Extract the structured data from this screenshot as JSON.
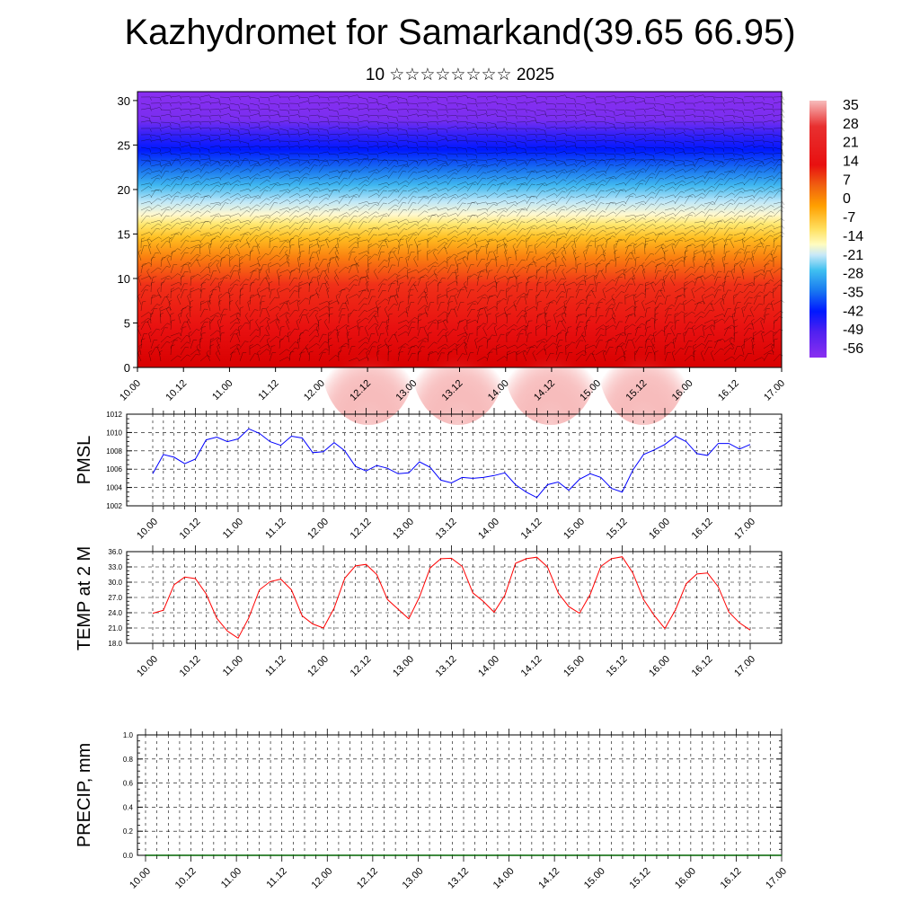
{
  "header": {
    "title": "Kazhydromet for Samarkand(39.65 66.95)",
    "subtitle": "10 ☆☆☆☆☆☆☆☆ 2025"
  },
  "colors": {
    "pmsl_line": "#0000ff",
    "temp_line": "#ff0000",
    "precip_line": "#006400",
    "grid": "#000000"
  },
  "chart_data": [
    {
      "type": "heatmap",
      "title": "",
      "xlabel": "",
      "ylabel": "",
      "x_tick_labels": [
        "10.00",
        "10.12",
        "11.00",
        "11.12",
        "12.00",
        "12.12",
        "13.00",
        "13.12",
        "14.00",
        "14.12",
        "15.00",
        "15.12",
        "16.00",
        "16.12",
        "17.00"
      ],
      "y_tick_labels": [
        "0",
        "5",
        "10",
        "15",
        "20",
        "25",
        "30"
      ],
      "ylim": [
        0,
        31
      ],
      "colorbar_labels": [
        "35",
        "28",
        "21",
        "14",
        "7",
        "0",
        "-7",
        "-14",
        "-21",
        "-28",
        "-35",
        "-42",
        "-49",
        "-56"
      ],
      "overlay": "wind barbs",
      "temperature_profile": [
        {
          "level": 0,
          "value": 28
        },
        {
          "level": 4,
          "value": 22
        },
        {
          "level": 8,
          "value": 14
        },
        {
          "level": 11,
          "value": 7
        },
        {
          "level": 14,
          "value": 0
        },
        {
          "level": 16,
          "value": -8
        },
        {
          "level": 18,
          "value": -20
        },
        {
          "level": 20,
          "value": -30
        },
        {
          "level": 22,
          "value": -40
        },
        {
          "level": 24,
          "value": -50
        },
        {
          "level": 26,
          "value": -56
        },
        {
          "level": 31,
          "value": -58
        }
      ]
    },
    {
      "type": "line",
      "ylabel": "PMSL",
      "ylim": [
        1002,
        1012
      ],
      "y_tick_labels": [
        "1002",
        "1004",
        "1006",
        "1008",
        "1010",
        "1012"
      ],
      "x_tick_labels": [
        "10.00",
        "10.12",
        "11.00",
        "11.12",
        "12.00",
        "12.12",
        "13.00",
        "13.12",
        "14.00",
        "14.12",
        "15.00",
        "15.12",
        "16.00",
        "16.12",
        "17.00"
      ],
      "x_start": 0,
      "x_step": 3,
      "series": [
        {
          "values": [
            1005.5,
            1007.6,
            1007.3,
            1006.6,
            1007.1,
            1009.2,
            1009.5,
            1009.0,
            1009.3,
            1010.4,
            1009.9,
            1009.0,
            1008.6,
            1009.6,
            1009.4,
            1007.8,
            1007.9,
            1008.9,
            1008.0,
            1006.3,
            1005.8,
            1006.4,
            1006.1,
            1005.5,
            1005.6,
            1006.8,
            1006.2,
            1004.8,
            1004.5,
            1005.1,
            1005.0,
            1005.1,
            1005.3,
            1005.6,
            1004.3,
            1003.5,
            1002.9,
            1004.3,
            1004.6,
            1003.7,
            1004.9,
            1005.5,
            1005.1,
            1003.9,
            1003.5,
            1005.9,
            1007.6,
            1008.1,
            1008.7,
            1009.6,
            1009.0,
            1007.7,
            1007.5,
            1008.8,
            1008.8,
            1008.2,
            1008.7
          ]
        }
      ]
    },
    {
      "type": "line",
      "ylabel": "TEMP at 2 M",
      "ylim": [
        18,
        36
      ],
      "y_tick_labels": [
        "18.0",
        "21.0",
        "24.0",
        "27.0",
        "30.0",
        "33.0",
        "36.0"
      ],
      "x_tick_labels": [
        "10.00",
        "10.12",
        "11.00",
        "11.12",
        "12.00",
        "12.12",
        "13.00",
        "13.12",
        "14.00",
        "14.12",
        "15.00",
        "15.12",
        "16.00",
        "16.12",
        "17.00"
      ],
      "x_start": 0,
      "x_step": 3,
      "series": [
        {
          "values": [
            23.9,
            24.5,
            29.5,
            31.0,
            30.7,
            27.7,
            22.9,
            20.4,
            19.0,
            23.0,
            28.5,
            30.1,
            30.6,
            28.5,
            23.4,
            21.8,
            21.0,
            24.9,
            30.8,
            33.2,
            33.5,
            31.5,
            26.6,
            24.7,
            22.8,
            27.1,
            32.8,
            34.6,
            34.7,
            33.1,
            27.9,
            26.2,
            24.1,
            27.4,
            33.7,
            34.6,
            34.9,
            33.0,
            27.9,
            25.2,
            23.9,
            27.6,
            33.1,
            34.6,
            35.0,
            31.8,
            26.6,
            23.5,
            20.9,
            24.6,
            29.7,
            31.6,
            31.8,
            29.1,
            24.1,
            22.0,
            20.6
          ]
        }
      ]
    },
    {
      "type": "line",
      "ylabel": "PRECIP, mm",
      "ylim": [
        0,
        1
      ],
      "y_tick_labels": [
        "0.0",
        "0.2",
        "0.4",
        "0.6",
        "0.8",
        "1.0"
      ],
      "x_tick_labels": [
        "10.00",
        "10.12",
        "11.00",
        "11.12",
        "12.00",
        "12.12",
        "13.00",
        "13.12",
        "14.00",
        "14.12",
        "15.00",
        "15.12",
        "16.00",
        "16.12",
        "17.00"
      ],
      "series": [
        {
          "values": [
            0,
            0,
            0,
            0,
            0,
            0,
            0,
            0,
            0,
            0,
            0,
            0,
            0,
            0,
            0,
            0,
            0,
            0,
            0,
            0,
            0,
            0,
            0,
            0,
            0,
            0,
            0,
            0,
            0,
            0,
            0,
            0,
            0,
            0,
            0,
            0,
            0,
            0,
            0,
            0,
            0,
            0,
            0,
            0,
            0,
            0,
            0,
            0,
            0,
            0,
            0,
            0,
            0,
            0,
            0,
            0,
            0
          ]
        }
      ]
    }
  ]
}
